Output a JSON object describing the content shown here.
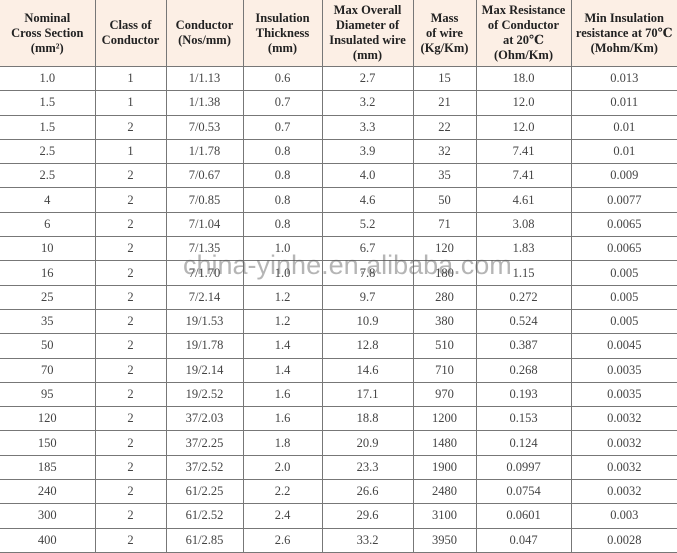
{
  "headers": [
    [
      "Nominal",
      "Cross Section",
      "(mm²)"
    ],
    [
      "Class of",
      "Conductor"
    ],
    [
      "Conductor",
      "(Nos/mm)"
    ],
    [
      "Insulation",
      "Thickness",
      "(mm)"
    ],
    [
      "Max Overall",
      "Diameter of",
      "Insulated wire",
      "(mm)"
    ],
    [
      "Mass",
      "of wire",
      "(Kg/Km)"
    ],
    [
      "Max Resistance",
      "of Conductor",
      "at 20℃",
      "(Ohm/Km)"
    ],
    [
      "Min Insulation",
      "resistance at 70℃",
      "(Mohm/Km)"
    ]
  ],
  "rows": [
    [
      "1.0",
      "1",
      "1/1.13",
      "0.6",
      "2.7",
      "15",
      "18.0",
      "0.013"
    ],
    [
      "1.5",
      "1",
      "1/1.38",
      "0.7",
      "3.2",
      "21",
      "12.0",
      "0.011"
    ],
    [
      "1.5",
      "2",
      "7/0.53",
      "0.7",
      "3.3",
      "22",
      "12.0",
      "0.01"
    ],
    [
      "2.5",
      "1",
      "1/1.78",
      "0.8",
      "3.9",
      "32",
      "7.41",
      "0.01"
    ],
    [
      "2.5",
      "2",
      "7/0.67",
      "0.8",
      "4.0",
      "35",
      "7.41",
      "0.009"
    ],
    [
      "4",
      "2",
      "7/0.85",
      "0.8",
      "4.6",
      "50",
      "4.61",
      "0.0077"
    ],
    [
      "6",
      "2",
      "7/1.04",
      "0.8",
      "5.2",
      "71",
      "3.08",
      "0.0065"
    ],
    [
      "10",
      "2",
      "7/1.35",
      "1.0",
      "6.7",
      "120",
      "1.83",
      "0.0065"
    ],
    [
      "16",
      "2",
      "7/1.70",
      "1.0",
      "7.8",
      "180",
      "1.15",
      "0.005"
    ],
    [
      "25",
      "2",
      "7/2.14",
      "1.2",
      "9.7",
      "280",
      "0.272",
      "0.005"
    ],
    [
      "35",
      "2",
      "19/1.53",
      "1.2",
      "10.9",
      "380",
      "0.524",
      "0.005"
    ],
    [
      "50",
      "2",
      "19/1.78",
      "1.4",
      "12.8",
      "510",
      "0.387",
      "0.0045"
    ],
    [
      "70",
      "2",
      "19/2.14",
      "1.4",
      "14.6",
      "710",
      "0.268",
      "0.0035"
    ],
    [
      "95",
      "2",
      "19/2.52",
      "1.6",
      "17.1",
      "970",
      "0.193",
      "0.0035"
    ],
    [
      "120",
      "2",
      "37/2.03",
      "1.6",
      "18.8",
      "1200",
      "0.153",
      "0.0032"
    ],
    [
      "150",
      "2",
      "37/2.25",
      "1.8",
      "20.9",
      "1480",
      "0.124",
      "0.0032"
    ],
    [
      "185",
      "2",
      "37/2.52",
      "2.0",
      "23.3",
      "1900",
      "0.0997",
      "0.0032"
    ],
    [
      "240",
      "2",
      "61/2.25",
      "2.2",
      "26.6",
      "2480",
      "0.0754",
      "0.0032"
    ],
    [
      "300",
      "2",
      "61/2.52",
      "2.4",
      "29.6",
      "3100",
      "0.0601",
      "0.003"
    ],
    [
      "400",
      "2",
      "61/2.85",
      "2.6",
      "33.2",
      "3950",
      "0.047",
      "0.0028"
    ]
  ],
  "watermark": "china-yinhe.en.alibaba.com",
  "colors": {
    "header_bg": "#fcefe5",
    "border": "#777777"
  }
}
